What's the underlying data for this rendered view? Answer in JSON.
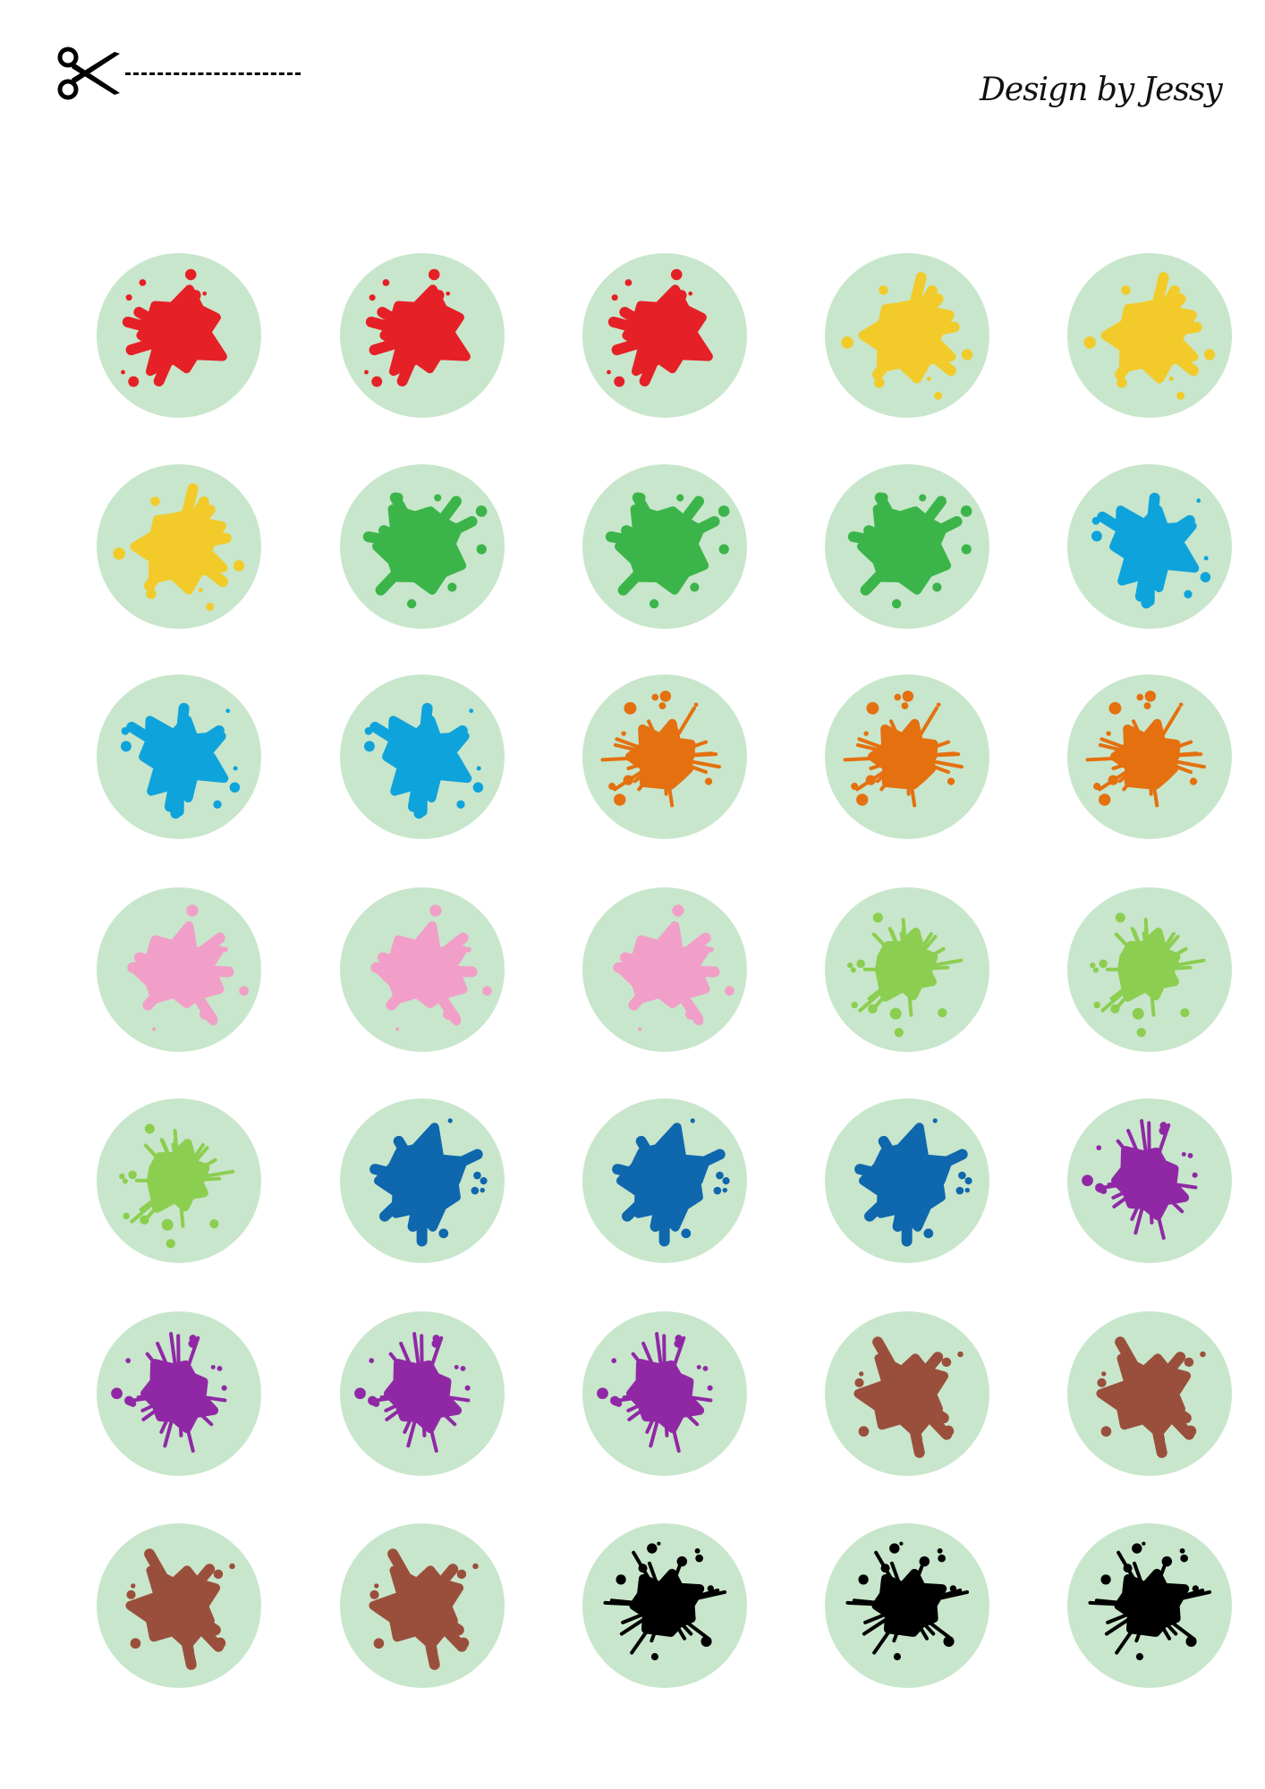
{
  "header": {
    "credit": "Design by Jessy"
  },
  "colors": {
    "circle_bg": "#c8e6cb"
  },
  "palette": {
    "red": "#e62027",
    "yellow": "#f2cb2a",
    "green": "#3bb54a",
    "cyan": "#0fa3dc",
    "orange": "#e5700f",
    "pink": "#f19fc8",
    "lime": "#8cce50",
    "blue": "#0f67ae",
    "purple": "#9028a6",
    "brown": "#9a4f3c",
    "black": "#000000"
  },
  "stickers": [
    [
      "red",
      "red",
      "red",
      "yellow",
      "yellow"
    ],
    [
      "yellow",
      "green",
      "green",
      "green",
      "cyan"
    ],
    [
      "cyan",
      "cyan",
      "orange",
      "orange",
      "orange"
    ],
    [
      "pink",
      "pink",
      "pink",
      "lime",
      "lime"
    ],
    [
      "lime",
      "blue",
      "blue",
      "blue",
      "purple"
    ],
    [
      "purple",
      "purple",
      "purple",
      "brown",
      "brown"
    ],
    [
      "brown",
      "brown",
      "black",
      "black",
      "black"
    ]
  ]
}
